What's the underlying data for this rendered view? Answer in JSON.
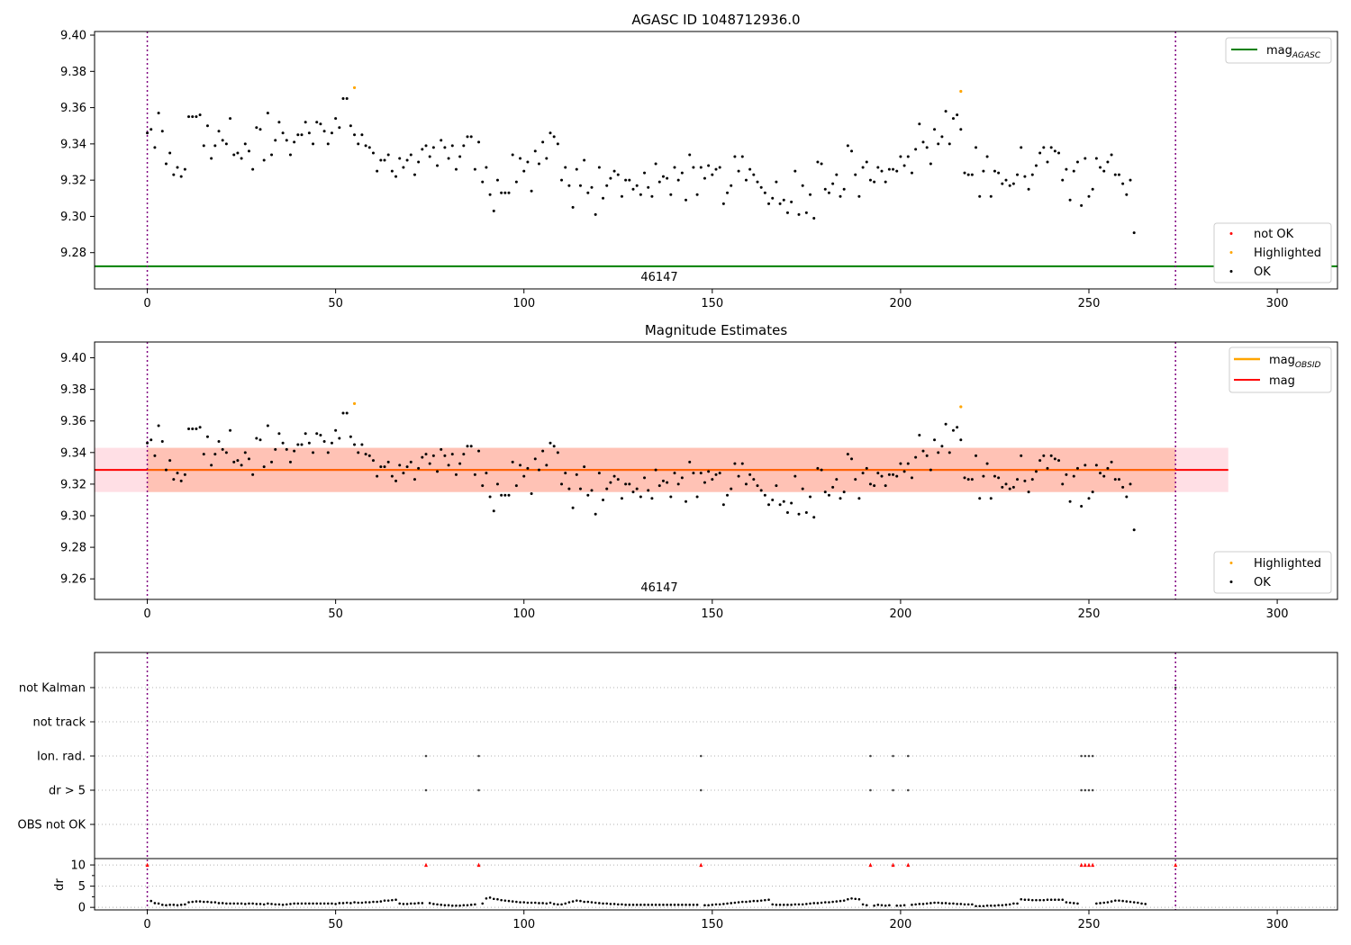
{
  "colors": {
    "ok": "#000000",
    "highlighted": "#ffa500",
    "not_ok": "#ff0000",
    "mag_agasc": "#008000",
    "mag_obsid": "#ffa500",
    "mag": "#ff0000",
    "band_outer": "#ffc0cb",
    "band_inner": "#ffa07a",
    "boundary": "#800080",
    "grid": "#b0b0b0"
  },
  "chart_data": [
    {
      "type": "scatter",
      "title": "AGASC ID 1048712936.0",
      "xlim": [
        -14,
        316
      ],
      "ylim": [
        9.26,
        9.402
      ],
      "x_ticks": [
        0,
        50,
        100,
        150,
        200,
        250,
        300
      ],
      "y_ticks": [
        9.28,
        9.3,
        9.32,
        9.34,
        9.36,
        9.38,
        9.4
      ],
      "obsid_label": "46147",
      "obsid_boundaries": [
        0,
        273
      ],
      "mag_agasc": 9.2725,
      "legend_upper": [
        "mag",
        "AGASC"
      ],
      "legend_lower": [
        "not OK",
        "Highlighted",
        "OK"
      ],
      "highlighted_points": [
        [
          55,
          9.371
        ],
        [
          216,
          9.369
        ]
      ],
      "ok_series": [
        9.346,
        9.348,
        9.338,
        9.357,
        9.347,
        9.329,
        9.335,
        9.323,
        9.327,
        9.322,
        9.326,
        9.355,
        9.355,
        9.355,
        9.356,
        9.339,
        9.35,
        9.332,
        9.339,
        9.347,
        9.342,
        9.34,
        9.354,
        9.334,
        9.335,
        9.332,
        9.34,
        9.336,
        9.326,
        9.349,
        9.348,
        9.331,
        9.357,
        9.334,
        9.342,
        9.352,
        9.346,
        9.342,
        9.334,
        9.341,
        9.345,
        9.345,
        9.352,
        9.346,
        9.34,
        9.352,
        9.351,
        9.347,
        9.34,
        9.346,
        9.354,
        9.349,
        9.365,
        9.365,
        9.35,
        9.345,
        9.34,
        9.345,
        9.339,
        9.338,
        9.335,
        9.325,
        9.331,
        9.331,
        9.334,
        9.325,
        9.322,
        9.332,
        9.327,
        9.331,
        9.334,
        9.323,
        9.33,
        9.337,
        9.339,
        9.333,
        9.338,
        9.328,
        9.342,
        9.338,
        9.332,
        9.339,
        9.326,
        9.333,
        9.339,
        9.344,
        9.344,
        9.326,
        9.341,
        9.319,
        9.327,
        9.312,
        9.303,
        9.32,
        9.313,
        9.313,
        9.313,
        9.334,
        9.319,
        9.332,
        9.325,
        9.33,
        9.314,
        9.336,
        9.329,
        9.341,
        9.332,
        9.346,
        9.344,
        9.34,
        9.32,
        9.327,
        9.317,
        9.305,
        9.326,
        9.317,
        9.331,
        9.313,
        9.316,
        9.301,
        9.327,
        9.31,
        9.317,
        9.321,
        9.325,
        9.323,
        9.311,
        9.32,
        9.32,
        9.315,
        9.317,
        9.312,
        9.324,
        9.316,
        9.311,
        9.329,
        9.319,
        9.322,
        9.321,
        9.312,
        9.327,
        9.32,
        9.324,
        9.309,
        9.334,
        9.327,
        9.312,
        9.327,
        9.321,
        9.328,
        9.323,
        9.326,
        9.327,
        9.307,
        9.313,
        9.317,
        9.333,
        9.325,
        9.333,
        9.32,
        9.326,
        9.323,
        9.319,
        9.316,
        9.313,
        9.307,
        9.31,
        9.319,
        9.307,
        9.309,
        9.302,
        9.308,
        9.325,
        9.301,
        9.317,
        9.302,
        9.312,
        9.299,
        9.33,
        9.329,
        9.315,
        9.313,
        9.318,
        9.323,
        9.311,
        9.315,
        9.339,
        9.336,
        9.323,
        9.311,
        9.327,
        9.33,
        9.32,
        9.319,
        9.327,
        9.325,
        9.319,
        9.326,
        9.326,
        9.325,
        9.333,
        9.328,
        9.333,
        9.324,
        9.337,
        9.351,
        9.341,
        9.338,
        9.329,
        9.348,
        9.34,
        9.344,
        9.358,
        9.34,
        9.354,
        9.356,
        9.348,
        9.324,
        9.323,
        9.323,
        9.338,
        9.311,
        9.325,
        9.333,
        9.311,
        9.325,
        9.324,
        9.318,
        9.32,
        9.317,
        9.318,
        9.323,
        9.338,
        9.322,
        9.315,
        9.323,
        9.328,
        9.335,
        9.338,
        9.33,
        9.338,
        9.336,
        9.335,
        9.32,
        9.326,
        9.309,
        9.325,
        9.33,
        9.306,
        9.332,
        9.311,
        9.315,
        9.332,
        9.327,
        9.325,
        9.33,
        9.334,
        9.323,
        9.323,
        9.318,
        9.312,
        9.32,
        9.291
      ]
    },
    {
      "type": "scatter",
      "title": "Magnitude Estimates",
      "xlim": [
        -14,
        316
      ],
      "ylim": [
        9.247,
        9.41
      ],
      "x_ticks": [
        0,
        50,
        100,
        150,
        200,
        250,
        300
      ],
      "y_ticks": [
        9.26,
        9.28,
        9.3,
        9.32,
        9.34,
        9.36,
        9.38,
        9.4
      ],
      "obsid_label": "46147",
      "mag": 9.329,
      "mag_band": [
        9.315,
        9.343
      ],
      "band_x_end": 287,
      "legend_upper": [
        [
          "mag",
          "OBSID"
        ],
        "mag"
      ],
      "legend_lower": [
        "Highlighted",
        "OK"
      ]
    },
    {
      "type": "scatter",
      "ylabel": "dr",
      "xlim": [
        -14,
        316
      ],
      "flag_labels": [
        "not Kalman",
        "not track",
        "Ion. rad.",
        "dr > 5",
        "OBS not OK"
      ],
      "flag_points": {
        "Ion. rad.": [
          74,
          88,
          147,
          192,
          198,
          202,
          248,
          249,
          250,
          251
        ],
        "dr > 5": [
          74,
          88,
          147,
          192,
          198,
          202,
          248,
          249,
          250,
          251
        ]
      },
      "dr_ylim": [
        -0.6,
        11.5
      ],
      "dr_ticks": [
        0,
        5,
        10
      ],
      "dr_clipped_points": [
        0,
        74,
        88,
        147,
        192,
        198,
        202,
        248,
        249,
        250,
        251,
        273
      ],
      "dr_series": [
        1.6,
        1.5,
        1.0,
        0.9,
        0.6,
        0.5,
        0.6,
        0.6,
        0.5,
        0.6,
        0.7,
        1.2,
        1.3,
        1.4,
        1.4,
        1.3,
        1.3,
        1.2,
        1.2,
        1.0,
        1.0,
        0.9,
        0.9,
        0.9,
        0.9,
        0.9,
        0.8,
        0.9,
        0.9,
        0.8,
        0.8,
        0.7,
        0.9,
        0.8,
        0.7,
        0.7,
        0.6,
        0.7,
        0.8,
        0.9,
        0.9,
        0.9,
        0.9,
        0.9,
        0.9,
        0.9,
        0.9,
        0.9,
        0.9,
        0.9,
        0.8,
        1.0,
        1.0,
        1.1,
        1.0,
        1.2,
        1.1,
        1.1,
        1.2,
        1.2,
        1.3,
        1.3,
        1.4,
        1.6,
        1.6,
        1.7,
        1.8,
        0.9,
        0.8,
        0.8,
        0.9,
        0.9,
        1.0,
        1.0,
        1.1,
        1.0,
        0.8,
        0.7,
        0.6,
        0.5,
        0.5,
        0.4,
        0.4,
        0.4,
        0.5,
        0.5,
        0.6,
        0.7,
        0.8,
        0.9,
        2.1,
        2.3,
        2.0,
        1.9,
        1.7,
        1.6,
        1.5,
        1.4,
        1.3,
        1.2,
        1.2,
        1.1,
        1.1,
        1.1,
        1.0,
        1.0,
        0.9,
        1.1,
        0.8,
        0.7,
        0.7,
        0.9,
        1.2,
        1.4,
        1.6,
        1.5,
        1.3,
        1.3,
        1.2,
        1.1,
        1.0,
        0.9,
        0.9,
        0.8,
        0.8,
        0.7,
        0.7,
        0.6,
        0.6,
        0.6,
        0.6,
        0.6,
        0.6,
        0.6,
        0.6,
        0.6,
        0.6,
        0.6,
        0.6,
        0.6,
        0.6,
        0.6,
        0.6,
        0.6,
        0.6,
        0.6,
        0.6,
        0.7,
        0.5,
        0.5,
        0.6,
        0.7,
        0.7,
        0.8,
        0.9,
        1.0,
        1.1,
        1.2,
        1.3,
        1.3,
        1.4,
        1.5,
        1.5,
        1.6,
        1.7,
        1.8,
        0.7,
        0.6,
        0.6,
        0.6,
        0.6,
        0.6,
        0.7,
        0.7,
        0.7,
        0.8,
        0.9,
        1.0,
        1.0,
        1.1,
        1.2,
        1.2,
        1.3,
        1.4,
        1.5,
        1.6,
        1.9,
        2.1,
        2.0,
        1.9,
        0.7,
        0.5,
        0.4,
        0.4,
        0.6,
        0.5,
        0.4,
        0.5,
        0.5,
        0.4,
        0.4,
        0.5,
        0.6,
        0.6,
        0.7,
        0.8,
        0.8,
        0.9,
        1.0,
        1.1,
        1.1,
        1.0,
        1.0,
        0.9,
        0.9,
        0.8,
        0.8,
        0.7,
        0.7,
        0.7,
        0.3,
        0.3,
        0.3,
        0.4,
        0.4,
        0.4,
        0.5,
        0.5,
        0.6,
        0.7,
        0.9,
        0.9,
        1.9,
        1.8,
        1.8,
        1.7,
        1.7,
        1.7,
        1.7,
        1.8,
        1.8,
        1.8,
        1.8,
        1.8,
        1.2,
        1.1,
        1.0,
        0.9,
        0.9,
        0.9,
        0.9,
        0.9,
        0.9,
        1.0,
        1.1,
        1.2,
        1.4,
        1.6,
        1.6,
        1.5,
        1.4,
        1.3,
        1.2,
        1.1,
        0.9,
        0.8
      ]
    }
  ]
}
